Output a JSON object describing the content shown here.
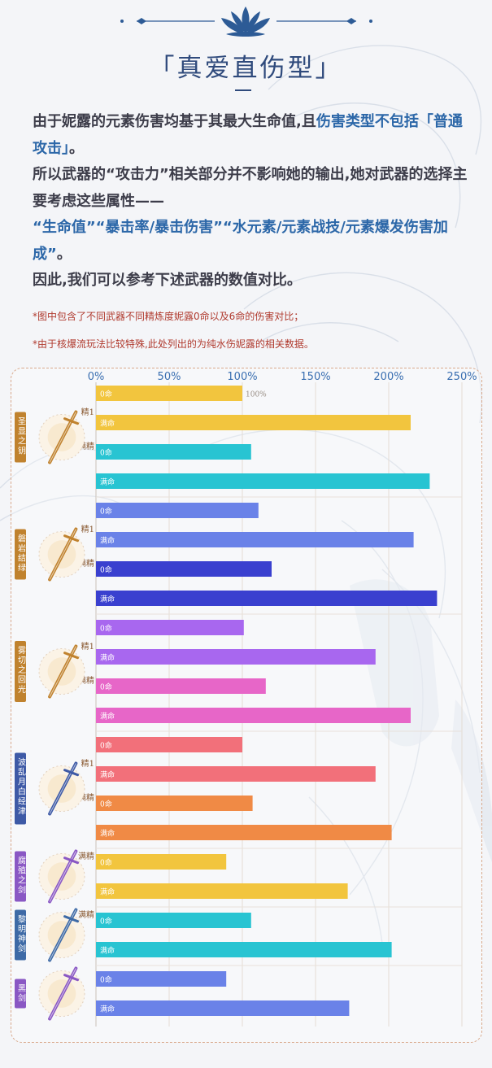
{
  "header": {
    "title": "「真爱直伤型」"
  },
  "intro": {
    "line1_a": "由于妮露的元素伤害均基于其最大生命值,且",
    "line1_hl": "伤害类型不包括「普通攻击」",
    "line1_b": "。",
    "line2": "所以武器的“攻击力”相关部分并不影响她的输出,她对武器的选择主要考虑这些属性——",
    "line3_hl": "“生命值”“暴击率/暴击伤害”“水元素/元素战技/元素爆发伤害加成”",
    "line3_b": "。",
    "line4": "因此,我们可以参考下述武器的数值对比。"
  },
  "notes": [
    "*图中包含了不同武器不同精炼度妮露0命以及6命的伤害对比；",
    "*由于核爆流玩法比较特殊,此处列出的为纯水伤妮露的相关数据。"
  ],
  "chart_data": {
    "type": "bar",
    "orientation": "horizontal",
    "x_ticks": [
      "0%",
      "50%",
      "100%",
      "150%",
      "200%",
      "250%"
    ],
    "xlim": [
      0,
      250
    ],
    "grid": true,
    "unit": "%",
    "data_labels": [
      {
        "text": "100%",
        "bar_index": 0
      }
    ],
    "bar_labels": {
      "c0": "0命",
      "c6": "满命"
    },
    "groups": [
      {
        "weapon": "圣显之钥",
        "frame_color": "#c0822e",
        "icon": "ornate-gold-sword-icon",
        "refinements": [
          {
            "label": "精1",
            "color": "#f2c53e",
            "bars": [
              {
                "con": "c0",
                "value": 100
              },
              {
                "con": "c6",
                "value": 215
              }
            ]
          },
          {
            "label": "满精",
            "color": "#28c4d2",
            "bars": [
              {
                "con": "c0",
                "value": 106
              },
              {
                "con": "c6",
                "value": 228
              }
            ]
          }
        ]
      },
      {
        "weapon": "磐岩结绿",
        "frame_color": "#c0822e",
        "icon": "jade-sword-icon",
        "refinements": [
          {
            "label": "精1",
            "color": "#6a82e8",
            "bars": [
              {
                "con": "c0",
                "value": 111
              },
              {
                "con": "c6",
                "value": 217
              }
            ]
          },
          {
            "label": "满精",
            "color": "#3a40cf",
            "bars": [
              {
                "con": "c0",
                "value": 120
              },
              {
                "con": "c6",
                "value": 233
              }
            ]
          }
        ]
      },
      {
        "weapon": "雾切之回光",
        "frame_color": "#c0822e",
        "icon": "violet-katana-icon",
        "refinements": [
          {
            "label": "精1",
            "color": "#a867ef",
            "bars": [
              {
                "con": "c0",
                "value": 101
              },
              {
                "con": "c6",
                "value": 191
              }
            ]
          },
          {
            "label": "满精",
            "color": "#e766c8",
            "bars": [
              {
                "con": "c0",
                "value": 116
              },
              {
                "con": "c6",
                "value": 215
              }
            ]
          }
        ]
      },
      {
        "weapon": "波乱月白经津",
        "frame_color": "#3e5aa6",
        "icon": "blue-katana-icon",
        "refinements": [
          {
            "label": "精1",
            "color": "#f2707a",
            "bars": [
              {
                "con": "c0",
                "value": 100
              },
              {
                "con": "c6",
                "value": 191
              }
            ]
          },
          {
            "label": "满精",
            "color": "#f08a45",
            "bars": [
              {
                "con": "c0",
                "value": 107
              },
              {
                "con": "c6",
                "value": 202
              }
            ]
          }
        ]
      },
      {
        "weapon": "腐殖之剑",
        "frame_color": "#8a58c4",
        "icon": "purple-sword-icon",
        "refinements": [
          {
            "label": "满精",
            "color": "#f2c53e",
            "bars": [
              {
                "con": "c0",
                "value": 89
              },
              {
                "con": "c6",
                "value": 172
              }
            ]
          }
        ]
      },
      {
        "weapon": "黎明神剑",
        "frame_color": "#3e6aa6",
        "icon": "silver-sword-icon",
        "refinements": [
          {
            "label": "满精",
            "color": "#28c4d2",
            "bars": [
              {
                "con": "c0",
                "value": 106
              },
              {
                "con": "c6",
                "value": 202
              }
            ]
          }
        ]
      },
      {
        "weapon": "黑剑",
        "frame_color": "#8a58c4",
        "icon": "dark-sword-icon",
        "refinements": [
          {
            "label": "",
            "color": "#6a82e8",
            "bars": [
              {
                "con": "c0",
                "value": 89
              },
              {
                "con": "c6",
                "value": 173
              }
            ]
          }
        ]
      }
    ]
  }
}
